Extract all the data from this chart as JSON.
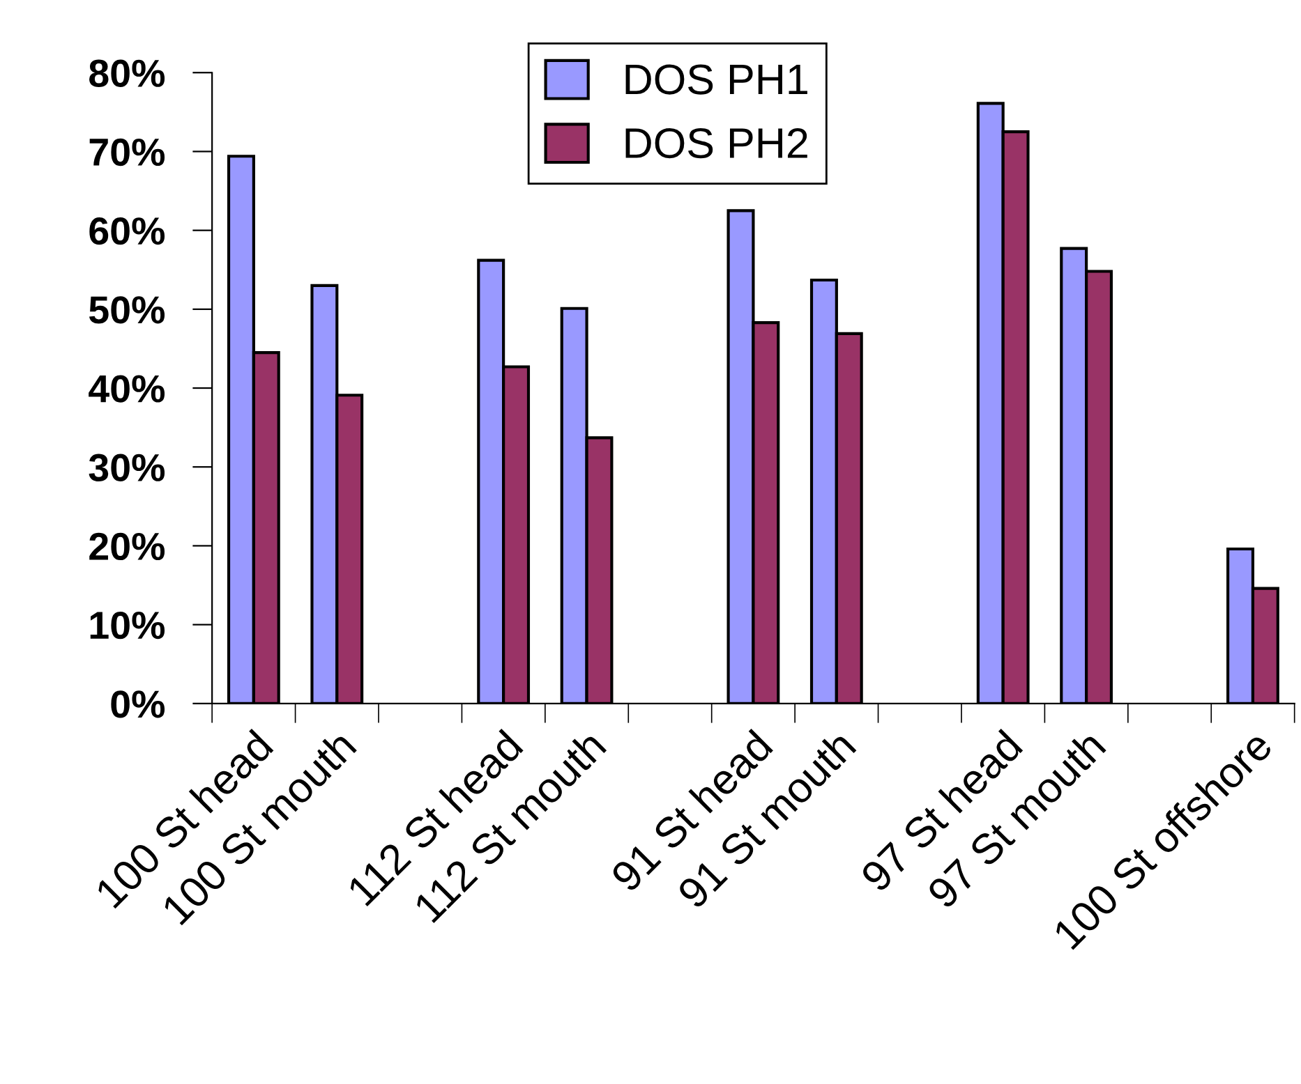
{
  "chart_data": {
    "type": "bar",
    "categories": [
      "100 St head",
      "100 St mouth",
      null,
      "112 St head",
      "112 St mouth",
      null,
      "91 St head",
      "91 St mouth",
      null,
      "97 St head",
      "97 St mouth",
      null,
      "100 St offshore"
    ],
    "series": [
      {
        "name": "DOS PH1",
        "color": "#9999ff",
        "values": [
          69.4,
          53.0,
          null,
          56.2,
          50.1,
          null,
          62.5,
          53.7,
          null,
          76.1,
          57.7,
          null,
          19.6
        ]
      },
      {
        "name": "DOS PH2",
        "color": "#993366",
        "values": [
          44.5,
          39.1,
          null,
          42.7,
          33.7,
          null,
          48.3,
          46.9,
          null,
          72.5,
          54.8,
          null,
          14.6
        ]
      }
    ],
    "ylim": [
      0,
      80
    ],
    "yticks": [
      {
        "value": 0,
        "label": "0%"
      },
      {
        "value": 10,
        "label": "10%"
      },
      {
        "value": 20,
        "label": "20%"
      },
      {
        "value": 30,
        "label": "30%"
      },
      {
        "value": 40,
        "label": "40%"
      },
      {
        "value": 50,
        "label": "50%"
      },
      {
        "value": 60,
        "label": "60%"
      },
      {
        "value": 70,
        "label": "70%"
      },
      {
        "value": 80,
        "label": "80%"
      }
    ],
    "grid": false,
    "legend": "top"
  }
}
